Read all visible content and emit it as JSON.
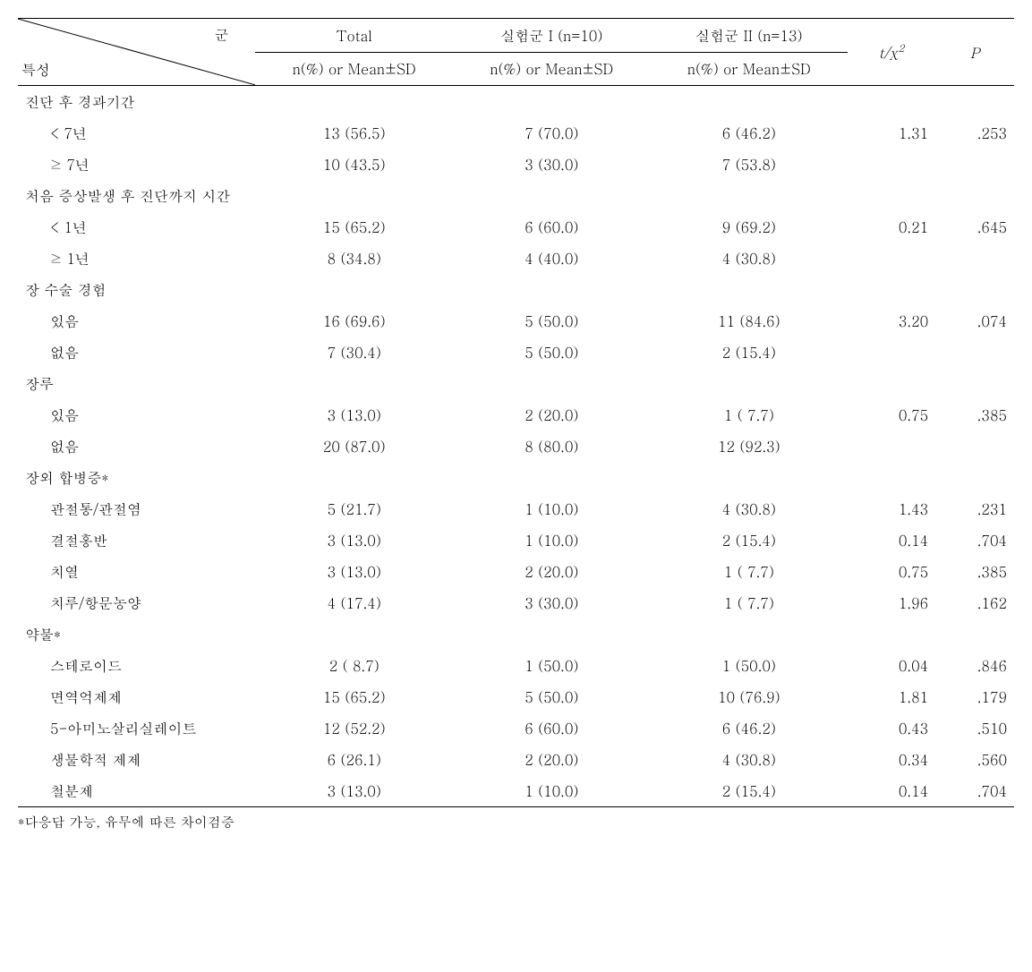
{
  "header": {
    "diag_top": "군",
    "diag_bottom": "특성",
    "total": "Total",
    "group1": "실험군 I (n=10)",
    "group2": "실험군 II (n=13)",
    "stat": "t/χ",
    "stat_sup": "2",
    "p": "P",
    "sub": "n(%) or Mean±SD"
  },
  "sections": [
    {
      "title": "진단 후 경과기간",
      "rows": [
        {
          "label": "< 7년",
          "total": "13 (56.5)",
          "g1": "7 (70.0)",
          "g2": "6 (46.2)",
          "stat": "1.31",
          "p": ".253"
        },
        {
          "label": "≥ 7년",
          "total": "10 (43.5)",
          "g1": "3 (30.0)",
          "g2": "7 (53.8)",
          "stat": "",
          "p": ""
        }
      ]
    },
    {
      "title": "처음 증상발생 후 진단까지 시간",
      "rows": [
        {
          "label": "< 1년",
          "total": "15 (65.2)",
          "g1": "6 (60.0)",
          "g2": "9 (69.2)",
          "stat": "0.21",
          "p": ".645"
        },
        {
          "label": "≥ 1년",
          "total": "8 (34.8)",
          "g1": "4 (40.0)",
          "g2": "4 (30.8)",
          "stat": "",
          "p": ""
        }
      ]
    },
    {
      "title": "장 수술 경험",
      "rows": [
        {
          "label": "있음",
          "total": "16 (69.6)",
          "g1": "5 (50.0)",
          "g2": "11 (84.6)",
          "stat": "3.20",
          "p": ".074"
        },
        {
          "label": "없음",
          "total": "7 (30.4)",
          "g1": "5 (50.0)",
          "g2": "2 (15.4)",
          "stat": "",
          "p": ""
        }
      ]
    },
    {
      "title": "장루",
      "rows": [
        {
          "label": "있음",
          "total": "3 (13.0)",
          "g1": "2 (20.0)",
          "g2": "1 ( 7.7)",
          "stat": "0.75",
          "p": ".385"
        },
        {
          "label": "없음",
          "total": "20 (87.0)",
          "g1": "8 (80.0)",
          "g2": "12 (92.3)",
          "stat": "",
          "p": ""
        }
      ]
    },
    {
      "title": "장외 합병증*",
      "rows": [
        {
          "label": "관절통/관절염",
          "total": "5 (21.7)",
          "g1": "1 (10.0)",
          "g2": "4 (30.8)",
          "stat": "1.43",
          "p": ".231"
        },
        {
          "label": "결절홍반",
          "total": "3 (13.0)",
          "g1": "1 (10.0)",
          "g2": "2 (15.4)",
          "stat": "0.14",
          "p": ".704"
        },
        {
          "label": "치열",
          "total": "3 (13.0)",
          "g1": "2 (20.0)",
          "g2": "1 ( 7.7)",
          "stat": "0.75",
          "p": ".385"
        },
        {
          "label": "치루/항문농양",
          "total": "4 (17.4)",
          "g1": "3 (30.0)",
          "g2": "1 ( 7.7)",
          "stat": "1.96",
          "p": ".162"
        }
      ]
    },
    {
      "title": "약물*",
      "rows": [
        {
          "label": "스테로이드",
          "total": "2 ( 8.7)",
          "g1": "1 (50.0)",
          "g2": "1 (50.0)",
          "stat": "0.04",
          "p": ".846"
        },
        {
          "label": "면역억제제",
          "total": "15 (65.2)",
          "g1": "5 (50.0)",
          "g2": "10 (76.9)",
          "stat": "1.81",
          "p": ".179"
        },
        {
          "label": "5-아미노살리실레이트",
          "total": "12 (52.2)",
          "g1": "6 (60.0)",
          "g2": "6 (46.2)",
          "stat": "0.43",
          "p": ".510"
        },
        {
          "label": "생물학적 제제",
          "total": "6 (26.1)",
          "g1": "2 (20.0)",
          "g2": "4 (30.8)",
          "stat": "0.34",
          "p": ".560"
        },
        {
          "label": "철분제",
          "total": "3 (13.0)",
          "g1": "1 (10.0)",
          "g2": "2 (15.4)",
          "stat": "0.14",
          "p": ".704"
        }
      ]
    }
  ],
  "footnote": "*다응답 가능, 유무에 따른 차이검증"
}
